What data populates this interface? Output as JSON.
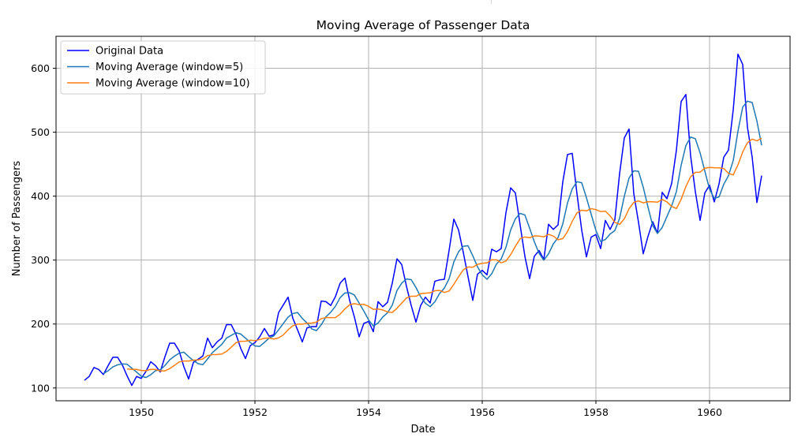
{
  "chart_data": {
    "type": "line",
    "title": "Moving Average of Passenger Data",
    "xlabel": "Date",
    "ylabel": "Number of Passengers",
    "x_start": "1949-01",
    "x_frequency": "monthly",
    "xlim": [
      "1948-07",
      "1961-06"
    ],
    "ylim": [
      80,
      650
    ],
    "x_ticks": [
      "1950",
      "1952",
      "1954",
      "1956",
      "1958",
      "1960"
    ],
    "y_ticks": [
      100,
      200,
      300,
      400,
      500,
      600
    ],
    "grid": true,
    "legend_position": "top-left",
    "series": [
      {
        "name": "Original Data",
        "color": "#0000ff",
        "values": [
          112,
          118,
          132,
          129,
          121,
          135,
          148,
          148,
          136,
          119,
          104,
          118,
          115,
          126,
          141,
          135,
          125,
          149,
          170,
          170,
          158,
          133,
          114,
          140,
          145,
          150,
          178,
          163,
          172,
          178,
          199,
          199,
          184,
          162,
          146,
          166,
          171,
          180,
          193,
          181,
          183,
          218,
          230,
          242,
          209,
          191,
          172,
          194,
          196,
          196,
          236,
          235,
          229,
          243,
          264,
          272,
          237,
          211,
          180,
          201,
          204,
          188,
          235,
          227,
          234,
          264,
          302,
          293,
          259,
          229,
          203,
          229,
          242,
          233,
          267,
          269,
          270,
          315,
          364,
          347,
          312,
          274,
          237,
          278,
          284,
          277,
          317,
          313,
          318,
          374,
          413,
          405,
          355,
          306,
          271,
          306,
          315,
          301,
          356,
          348,
          355,
          422,
          465,
          467,
          404,
          347,
          305,
          336,
          340,
          318,
          362,
          348,
          363,
          435,
          491,
          505,
          404,
          359,
          310,
          337,
          360,
          342,
          406,
          396,
          420,
          472,
          548,
          559,
          463,
          407,
          362,
          405,
          417,
          391,
          419,
          461,
          472,
          535,
          622,
          606,
          508,
          461,
          390,
          432
        ]
      },
      {
        "name": "Moving Average (window=5)",
        "color": "#1f77b4",
        "window": 5
      },
      {
        "name": "Moving Average (window=10)",
        "color": "#ff7f0e",
        "window": 10
      }
    ]
  }
}
